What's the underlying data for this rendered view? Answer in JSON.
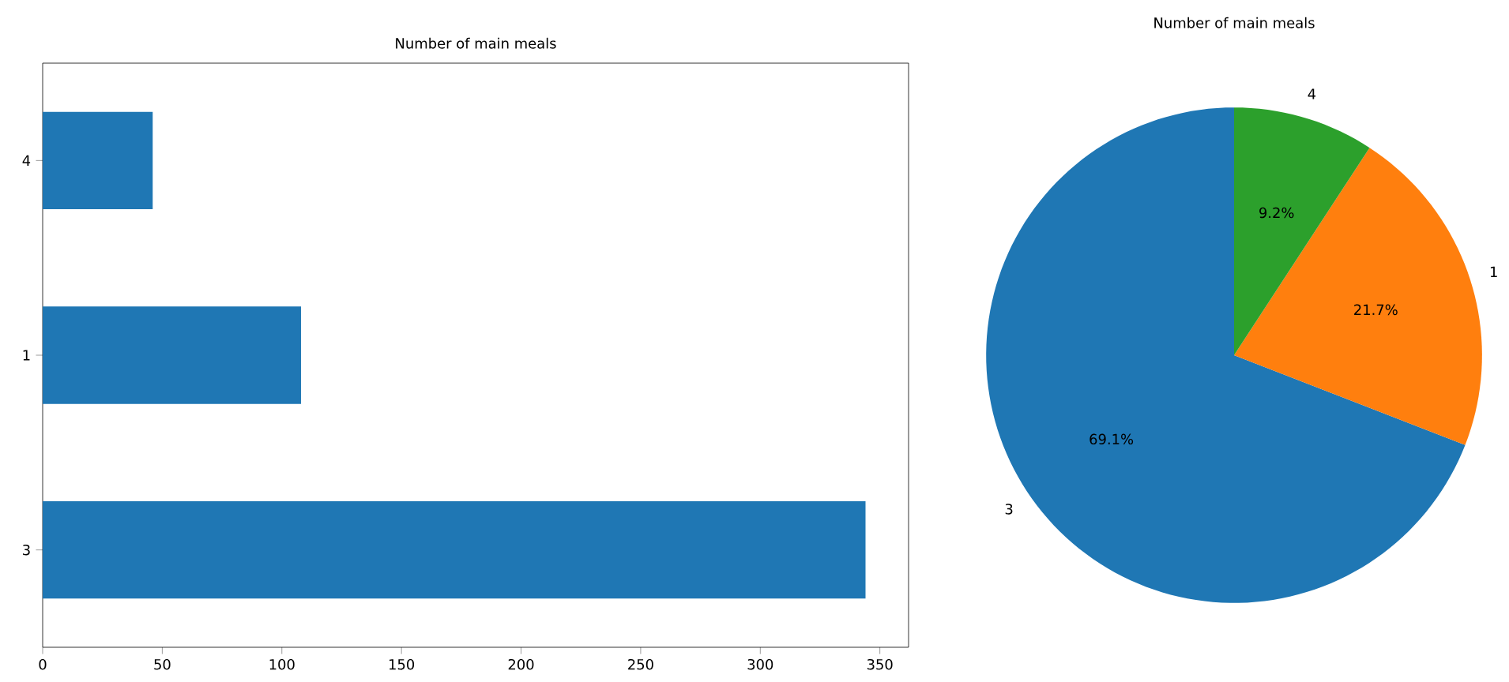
{
  "chart_data": [
    {
      "type": "bar",
      "title": "Number of main meals",
      "orientation": "horizontal",
      "categories": [
        "4",
        "1",
        "3"
      ],
      "values": [
        46,
        108,
        344
      ],
      "color": "#1f77b4",
      "xlim": [
        0,
        362
      ],
      "xticks": [
        0,
        50,
        100,
        150,
        200,
        250,
        300,
        350
      ],
      "grid": false
    },
    {
      "type": "pie",
      "title": "Number of main meals",
      "categories": [
        "3",
        "1",
        "4"
      ],
      "values": [
        69.1,
        21.7,
        9.2
      ],
      "colors": [
        "#1f77b4",
        "#ff7f0e",
        "#2ca02c"
      ],
      "value_labels": [
        "69.1%",
        "21.7%",
        "9.2%"
      ]
    }
  ]
}
